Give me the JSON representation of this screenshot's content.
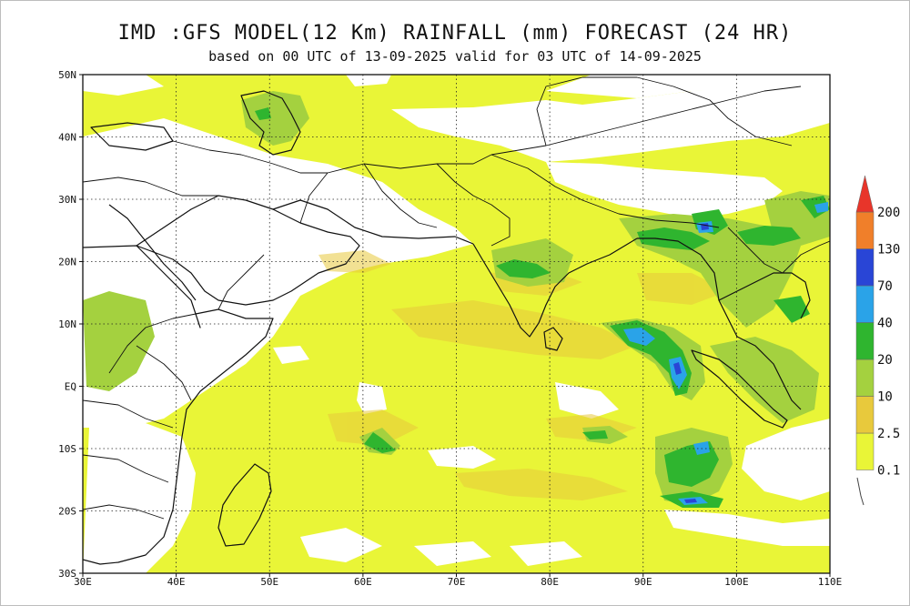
{
  "title": "IMD :GFS MODEL(12 Km) RAINFALL (mm) FORECAST (24 HR)",
  "subtitle": "based on 00 UTC of 13-09-2025 valid for 03 UTC of 14-09-2025",
  "map": {
    "lon_range": [
      30,
      110
    ],
    "lat_range": [
      -30,
      50
    ],
    "lon_ticks": [
      {
        "value": 30,
        "label": "30E"
      },
      {
        "value": 40,
        "label": "40E"
      },
      {
        "value": 50,
        "label": "50E"
      },
      {
        "value": 60,
        "label": "60E"
      },
      {
        "value": 70,
        "label": "70E"
      },
      {
        "value": 80,
        "label": "80E"
      },
      {
        "value": 90,
        "label": "90E"
      },
      {
        "value": 100,
        "label": "100E"
      },
      {
        "value": 110,
        "label": "110E"
      }
    ],
    "lat_ticks": [
      {
        "value": 50,
        "label": "50N"
      },
      {
        "value": 40,
        "label": "40N"
      },
      {
        "value": 30,
        "label": "30N"
      },
      {
        "value": 20,
        "label": "20N"
      },
      {
        "value": 10,
        "label": "10N"
      },
      {
        "value": 0,
        "label": "EQ"
      },
      {
        "value": -10,
        "label": "10S"
      },
      {
        "value": -20,
        "label": "20S"
      },
      {
        "value": -30,
        "label": "30S"
      }
    ],
    "gridlines": "dotted"
  },
  "legend": {
    "levels": [
      "0.1",
      "2.5",
      "10",
      "20",
      "40",
      "70",
      "130",
      "200"
    ],
    "colors": [
      "#e9f537",
      "#e8c93c",
      "#a4d13f",
      "#2fb52f",
      "#2aa3e8",
      "#2945d6",
      "#f07f2a",
      "#e8352a"
    ]
  }
}
